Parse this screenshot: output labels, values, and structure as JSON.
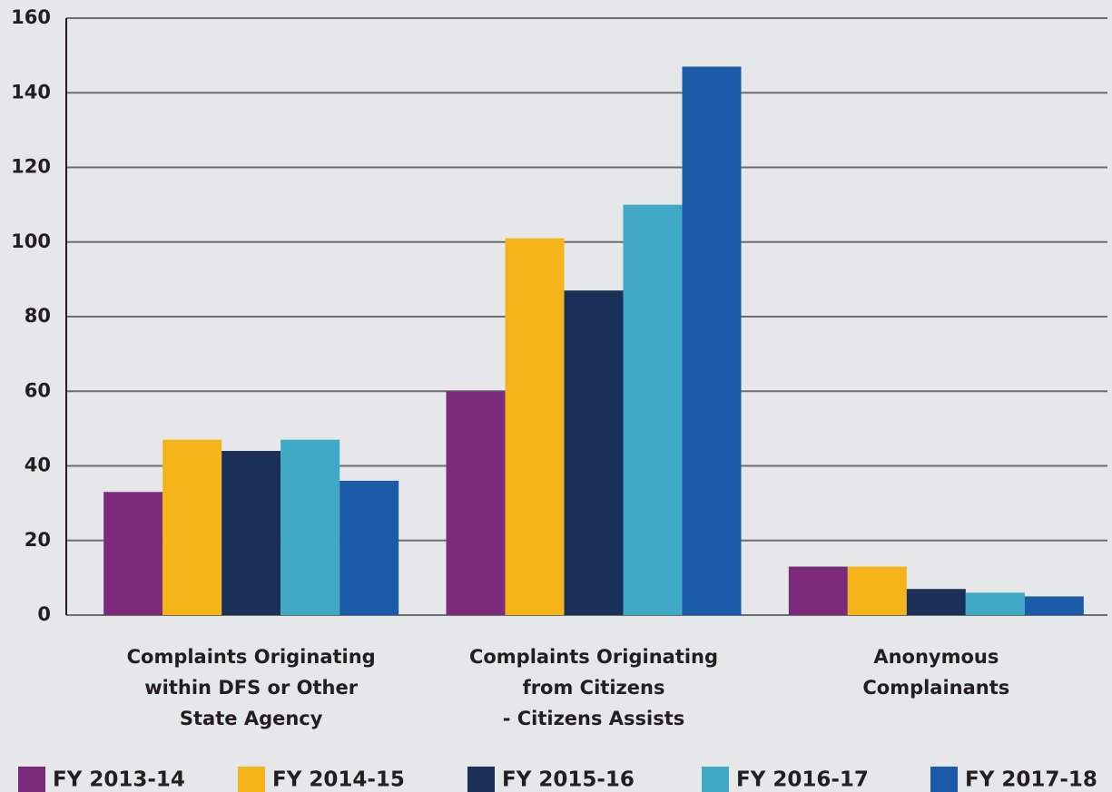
{
  "chart_data": {
    "type": "bar",
    "categories": [
      "Complaints Originating\nwithin DFS or Other\nState Agency",
      "Complaints Originating\nfrom Citizens\n- Citizens Assists",
      "Anonymous\nComplainants"
    ],
    "series": [
      {
        "name": "FY 2013-14",
        "color": "#7b2a7c",
        "values": [
          33,
          60,
          13
        ]
      },
      {
        "name": "FY 2014-15",
        "color": "#f5b41a",
        "values": [
          47,
          101,
          13
        ]
      },
      {
        "name": "FY 2015-16",
        "color": "#1b3059",
        "values": [
          44,
          87,
          7
        ]
      },
      {
        "name": "FY 2016-17",
        "color": "#3fa9c6",
        "values": [
          47,
          110,
          6
        ]
      },
      {
        "name": "FY 2017-18",
        "color": "#1c5baa",
        "values": [
          36,
          147,
          5
        ]
      }
    ],
    "ylim": [
      0,
      160
    ],
    "yticks": [
      0,
      20,
      40,
      60,
      80,
      100,
      120,
      140,
      160
    ],
    "grid": true,
    "legend": "bottom"
  }
}
